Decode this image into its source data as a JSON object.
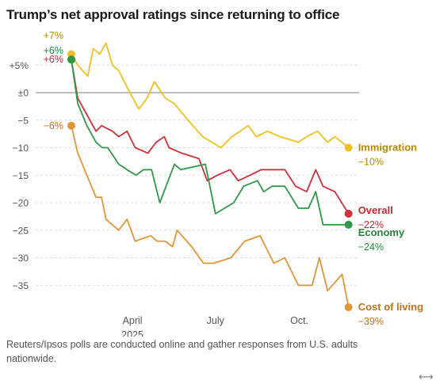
{
  "title": "Trump’s net approval ratings since returning to office",
  "footnote": "Reuters/Ipsos polls are conducted online and gather responses from U.S. adults nationwide.",
  "expand_glyph": "⟷",
  "colors": {
    "immigration": "#f2c11d",
    "overall": "#d0303c",
    "economy": "#2e9a48",
    "cost_of_living": "#e3953a",
    "immigration_text": "#b38a00",
    "cost_text": "#c4711a",
    "overall_text": "#c42a35",
    "economy_text": "#23843d",
    "zero_line": "#a8a8a8",
    "grid": "#dcdcdc",
    "axis_text": "#555555"
  },
  "chart_data": {
    "type": "line",
    "title": "Trump’s net approval ratings since returning to office",
    "xlabel": "",
    "ylabel": "",
    "ylim": [
      -40,
      8
    ],
    "x_range": [
      "2025-01-24",
      "2025-11-26"
    ],
    "y_ticks": [
      {
        "value": 5,
        "label": "+5%"
      },
      {
        "value": 0,
        "label": "±0"
      },
      {
        "value": -5,
        "label": "−5"
      },
      {
        "value": -10,
        "label": "−10"
      },
      {
        "value": -15,
        "label": "−15"
      },
      {
        "value": -20,
        "label": "−20"
      },
      {
        "value": -25,
        "label": "−25"
      },
      {
        "value": -30,
        "label": "−30"
      },
      {
        "value": -35,
        "label": "−35"
      }
    ],
    "x_ticks": [
      {
        "date": "2025-04-01",
        "label": "April",
        "sublabel": "2025"
      },
      {
        "date": "2025-07-01",
        "label": "July",
        "sublabel": ""
      },
      {
        "date": "2025-10-01",
        "label": "Oct.",
        "sublabel": ""
      }
    ],
    "grid": true,
    "series": [
      {
        "name": "Immigration",
        "color_key": "immigration",
        "text_color_key": "immigration_text",
        "start_label": "+7%",
        "end_label": "−10%",
        "points": [
          [
            "2025-01-24",
            7
          ],
          [
            "2025-01-31",
            5
          ],
          [
            "2025-02-11",
            3
          ],
          [
            "2025-02-17",
            8
          ],
          [
            "2025-02-24",
            7
          ],
          [
            "2025-03-03",
            9
          ],
          [
            "2025-03-10",
            5
          ],
          [
            "2025-03-17",
            4
          ],
          [
            "2025-03-26",
            1
          ],
          [
            "2025-04-08",
            -3
          ],
          [
            "2025-04-17",
            -1
          ],
          [
            "2025-04-25",
            2
          ],
          [
            "2025-05-07",
            -1
          ],
          [
            "2025-05-17",
            -2
          ],
          [
            "2025-06-01",
            -5
          ],
          [
            "2025-06-17",
            -8
          ],
          [
            "2025-07-07",
            -10
          ],
          [
            "2025-07-19",
            -8
          ],
          [
            "2025-08-06",
            -6
          ],
          [
            "2025-08-15",
            -8
          ],
          [
            "2025-08-27",
            -7
          ],
          [
            "2025-09-10",
            -8
          ],
          [
            "2025-09-30",
            -9
          ],
          [
            "2025-10-09",
            -8
          ],
          [
            "2025-10-21",
            -7
          ],
          [
            "2025-11-01",
            -9
          ],
          [
            "2025-11-09",
            -8
          ],
          [
            "2025-11-24",
            -10
          ]
        ]
      },
      {
        "name": "Overall",
        "color_key": "overall",
        "text_color_key": "overall_text",
        "start_label": "+6%",
        "end_label": "−22%",
        "points": [
          [
            "2025-01-24",
            6
          ],
          [
            "2025-01-31",
            -1
          ],
          [
            "2025-02-10",
            -4
          ],
          [
            "2025-02-20",
            -7
          ],
          [
            "2025-02-26",
            -6
          ],
          [
            "2025-03-10",
            -7
          ],
          [
            "2025-03-17",
            -8
          ],
          [
            "2025-03-26",
            -7
          ],
          [
            "2025-04-04",
            -10
          ],
          [
            "2025-04-18",
            -11
          ],
          [
            "2025-04-27",
            -9
          ],
          [
            "2025-05-06",
            -8
          ],
          [
            "2025-05-11",
            -10
          ],
          [
            "2025-05-25",
            -11
          ],
          [
            "2025-06-13",
            -12
          ],
          [
            "2025-06-22",
            -16
          ],
          [
            "2025-07-03",
            -15
          ],
          [
            "2025-07-17",
            -14
          ],
          [
            "2025-07-26",
            -16
          ],
          [
            "2025-08-08",
            -15
          ],
          [
            "2025-08-20",
            -14
          ],
          [
            "2025-09-07",
            -14
          ],
          [
            "2025-09-15",
            -14
          ],
          [
            "2025-09-27",
            -17
          ],
          [
            "2025-10-09",
            -18
          ],
          [
            "2025-10-19",
            -14
          ],
          [
            "2025-10-27",
            -17
          ],
          [
            "2025-11-09",
            -18
          ],
          [
            "2025-11-24",
            -22
          ]
        ]
      },
      {
        "name": "Economy",
        "color_key": "economy",
        "text_color_key": "economy_text",
        "start_label": "+6%",
        "end_label": "−24%",
        "points": [
          [
            "2025-01-24",
            6
          ],
          [
            "2025-01-31",
            -2
          ],
          [
            "2025-02-10",
            -6
          ],
          [
            "2025-02-20",
            -9
          ],
          [
            "2025-02-27",
            -10
          ],
          [
            "2025-03-05",
            -10
          ],
          [
            "2025-03-17",
            -13
          ],
          [
            "2025-03-26",
            -14
          ],
          [
            "2025-04-05",
            -15
          ],
          [
            "2025-04-13",
            -14
          ],
          [
            "2025-04-22",
            -14
          ],
          [
            "2025-05-01",
            -20
          ],
          [
            "2025-05-17",
            -13
          ],
          [
            "2025-05-24",
            -14
          ],
          [
            "2025-06-20",
            -13
          ],
          [
            "2025-07-01",
            -22
          ],
          [
            "2025-07-21",
            -20
          ],
          [
            "2025-08-01",
            -17
          ],
          [
            "2025-08-16",
            -16
          ],
          [
            "2025-08-23",
            -18
          ],
          [
            "2025-09-01",
            -17
          ],
          [
            "2025-09-15",
            -17
          ],
          [
            "2025-09-30",
            -21
          ],
          [
            "2025-10-11",
            -21
          ],
          [
            "2025-10-19",
            -18
          ],
          [
            "2025-10-27",
            -24
          ],
          [
            "2025-11-24",
            -24
          ]
        ]
      },
      {
        "name": "Cost of living",
        "color_key": "cost_of_living",
        "text_color_key": "cost_text",
        "start_label": "−6%",
        "end_label": "−39%",
        "points": [
          [
            "2025-01-24",
            -6
          ],
          [
            "2025-01-31",
            -11
          ],
          [
            "2025-02-10",
            -15
          ],
          [
            "2025-02-20",
            -19
          ],
          [
            "2025-02-26",
            -19
          ],
          [
            "2025-03-03",
            -23
          ],
          [
            "2025-03-17",
            -25
          ],
          [
            "2025-03-26",
            -23
          ],
          [
            "2025-04-04",
            -27
          ],
          [
            "2025-04-21",
            -26
          ],
          [
            "2025-04-28",
            -27
          ],
          [
            "2025-05-07",
            -27
          ],
          [
            "2025-05-15",
            -28
          ],
          [
            "2025-05-20",
            -25
          ],
          [
            "2025-06-05",
            -28
          ],
          [
            "2025-06-18",
            -31
          ],
          [
            "2025-06-29",
            -31
          ],
          [
            "2025-07-18",
            -30
          ],
          [
            "2025-08-02",
            -27
          ],
          [
            "2025-08-19",
            -26
          ],
          [
            "2025-09-03",
            -31
          ],
          [
            "2025-09-15",
            -30
          ],
          [
            "2025-09-30",
            -35
          ],
          [
            "2025-10-15",
            -35
          ],
          [
            "2025-10-23",
            -30
          ],
          [
            "2025-11-01",
            -36
          ],
          [
            "2025-11-17",
            -33
          ],
          [
            "2025-11-24",
            -39
          ]
        ]
      }
    ]
  }
}
